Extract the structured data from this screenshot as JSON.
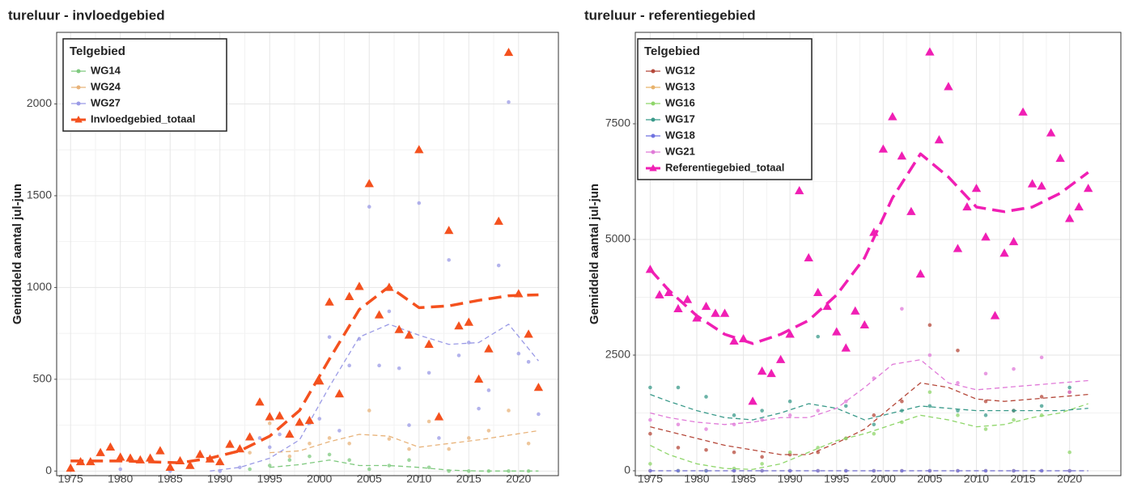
{
  "chart_data": [
    {
      "type": "scatter",
      "title": "tureluur - invloedgebied",
      "y_label": "Gemiddeld aantal jul-jun",
      "legend_title": "Telgebied",
      "legend": "top-left",
      "grid": true,
      "xlim": [
        1973.6,
        2024
      ],
      "ylim": [
        -25,
        2390
      ],
      "xticks": [
        1975,
        1980,
        1985,
        1990,
        1995,
        2000,
        2005,
        2010,
        2015,
        2020
      ],
      "yticks": [
        0,
        500,
        1000,
        1500,
        2000
      ],
      "trend_x": [
        1975,
        1977,
        1980,
        1983,
        1986,
        1989,
        1992,
        1995,
        1998,
        2001,
        2004,
        2007,
        2010,
        2013,
        2016,
        2019,
        2022
      ],
      "series": [
        {
          "name": "WG14",
          "color": "#7fc97f",
          "marker": "circle",
          "x": [
            1993,
            1995,
            1997,
            1999,
            2001,
            2003,
            2005,
            2007,
            2009,
            2011,
            2013,
            2015,
            2017,
            2019,
            2021
          ],
          "values": [
            10,
            30,
            60,
            80,
            90,
            60,
            10,
            30,
            60,
            20,
            0,
            0,
            0,
            0,
            0
          ],
          "trend": [
            null,
            null,
            null,
            null,
            null,
            null,
            null,
            20,
            35,
            60,
            30,
            30,
            20,
            5,
            0,
            0,
            0
          ]
        },
        {
          "name": "WG24",
          "color": "#e8b37a",
          "marker": "circle",
          "x": [
            1993,
            1995,
            1997,
            1999,
            2001,
            2003,
            2005,
            2007,
            2009,
            2011,
            2013,
            2015,
            2017,
            2019,
            2021
          ],
          "values": [
            100,
            260,
            80,
            150,
            180,
            150,
            330,
            175,
            120,
            270,
            120,
            180,
            220,
            330,
            150
          ],
          "trend": [
            null,
            null,
            null,
            null,
            null,
            null,
            null,
            100,
            110,
            160,
            200,
            190,
            130,
            150,
            170,
            195,
            220
          ]
        },
        {
          "name": "WG27",
          "color": "#9a9ae6",
          "marker": "circle",
          "x": [
            1975,
            1980,
            1985,
            1990,
            1992,
            1994,
            1995,
            1996,
            1999,
            2000,
            2001,
            2002,
            2003,
            2004,
            2005,
            2006,
            2007,
            2008,
            2009,
            2010,
            2011,
            2012,
            2013,
            2014,
            2015,
            2016,
            2017,
            2018,
            2019,
            2020,
            2021,
            2022
          ],
          "values": [
            5,
            10,
            0,
            0,
            20,
            180,
            130,
            200,
            260,
            285,
            730,
            220,
            575,
            720,
            1440,
            575,
            870,
            560,
            250,
            1460,
            535,
            180,
            1150,
            630,
            700,
            340,
            440,
            1120,
            2010,
            640,
            595,
            310
          ],
          "trend": [
            null,
            null,
            null,
            null,
            null,
            0,
            20,
            70,
            170,
            460,
            730,
            800,
            740,
            690,
            700,
            800,
            600
          ]
        },
        {
          "name": "Invloedgebied_totaal",
          "color": "#f4511e",
          "marker": "triangle",
          "total": true,
          "x": [
            1975,
            1976,
            1977,
            1978,
            1979,
            1980,
            1981,
            1982,
            1983,
            1984,
            1985,
            1986,
            1987,
            1988,
            1989,
            1990,
            1991,
            1992,
            1993,
            1994,
            1995,
            1996,
            1997,
            1998,
            1999,
            2000,
            2001,
            2002,
            2003,
            2004,
            2005,
            2006,
            2007,
            2008,
            2009,
            2010,
            2011,
            2012,
            2013,
            2014,
            2015,
            2016,
            2017,
            2018,
            2019,
            2020,
            2021,
            2022
          ],
          "values": [
            15,
            50,
            50,
            100,
            130,
            75,
            70,
            60,
            70,
            110,
            20,
            55,
            30,
            90,
            65,
            50,
            145,
            120,
            185,
            375,
            295,
            300,
            200,
            265,
            275,
            490,
            920,
            420,
            950,
            1005,
            1565,
            850,
            1000,
            770,
            740,
            1750,
            690,
            295,
            1310,
            790,
            810,
            500,
            665,
            1360,
            2280,
            965,
            745,
            455
          ],
          "trend": [
            55,
            55,
            55,
            50,
            45,
            70,
            110,
            190,
            330,
            610,
            880,
            1005,
            890,
            900,
            930,
            955,
            960
          ]
        }
      ]
    },
    {
      "type": "scatter",
      "title": "tureluur - referentiegebied",
      "y_label": "Gemiddeld aantal jul-jun",
      "legend_title": "Telgebied",
      "legend": "top-left",
      "grid": true,
      "xlim": [
        1973.4,
        2025.5
      ],
      "ylim": [
        -105,
        9476
      ],
      "xticks": [
        1975,
        1980,
        1985,
        1990,
        1995,
        2000,
        2005,
        2010,
        2015,
        2020
      ],
      "yticks": [
        0,
        2500,
        5000,
        7500
      ],
      "trend_x": [
        1975,
        1977,
        1980,
        1983,
        1986,
        1989,
        1992,
        1995,
        1998,
        2001,
        2004,
        2007,
        2010,
        2013,
        2016,
        2019,
        2022
      ],
      "series": [
        {
          "name": "WG12",
          "color": "#b5483a",
          "marker": "circle",
          "x": [
            1975,
            1978,
            1981,
            1984,
            1987,
            1990,
            1993,
            1996,
            1999,
            2002,
            2005,
            2008,
            2011,
            2014,
            2017,
            2020
          ],
          "values": [
            800,
            500,
            450,
            400,
            300,
            350,
            400,
            700,
            1200,
            1500,
            3150,
            2600,
            1500,
            1300,
            1600,
            1700
          ],
          "trend": [
            950,
            850,
            700,
            550,
            450,
            350,
            350,
            600,
            900,
            1400,
            1900,
            1800,
            1550,
            1500,
            1550,
            1600,
            1650
          ]
        },
        {
          "name": "WG13",
          "color": "#e8b36c",
          "marker": "circle",
          "x": [
            1975,
            1978,
            1981,
            1984,
            1987,
            1990,
            1993,
            1996,
            1999,
            2002,
            2005,
            2008,
            2011,
            2014,
            2017,
            2020
          ],
          "values": [
            0,
            0,
            0,
            0,
            0,
            0,
            0,
            0,
            0,
            0,
            0,
            0,
            0,
            0,
            0,
            0
          ],
          "trend": [
            0,
            0,
            0,
            0,
            0,
            0,
            0,
            0,
            0,
            0,
            0,
            0,
            0,
            0,
            0,
            0,
            0
          ]
        },
        {
          "name": "WG16",
          "color": "#8fd66a",
          "marker": "circle",
          "x": [
            1975,
            1978,
            1981,
            1984,
            1987,
            1990,
            1993,
            1996,
            1999,
            2002,
            2005,
            2008,
            2011,
            2014,
            2017,
            2020
          ],
          "values": [
            150,
            0,
            0,
            50,
            150,
            400,
            500,
            700,
            800,
            1050,
            1700,
            1200,
            900,
            1100,
            1200,
            400
          ],
          "trend": [
            550,
            350,
            150,
            50,
            30,
            150,
            400,
            650,
            800,
            1000,
            1200,
            1100,
            950,
            1000,
            1150,
            1250,
            1450
          ]
        },
        {
          "name": "WG17",
          "color": "#3a9a8a",
          "marker": "circle",
          "x": [
            1975,
            1978,
            1981,
            1984,
            1987,
            1990,
            1993,
            1996,
            1999,
            2002,
            2005,
            2008,
            2011,
            2014,
            2017,
            2020
          ],
          "values": [
            1800,
            1800,
            1600,
            1200,
            1300,
            1500,
            2900,
            1400,
            1000,
            1300,
            1400,
            1300,
            1200,
            1300,
            1400,
            1800
          ],
          "trend": [
            1650,
            1500,
            1300,
            1150,
            1100,
            1250,
            1450,
            1350,
            1100,
            1250,
            1400,
            1350,
            1300,
            1300,
            1300,
            1300,
            1350
          ]
        },
        {
          "name": "WG18",
          "color": "#6f72e0",
          "marker": "circle",
          "x": [
            1975,
            1978,
            1981,
            1984,
            1987,
            1990,
            1993,
            1996,
            1999,
            2002,
            2005,
            2008,
            2011,
            2014,
            2017,
            2020
          ],
          "values": [
            0,
            0,
            0,
            0,
            0,
            0,
            0,
            0,
            0,
            0,
            0,
            0,
            0,
            0,
            0,
            0
          ],
          "trend": [
            0,
            0,
            0,
            0,
            0,
            0,
            0,
            0,
            0,
            0,
            0,
            0,
            0,
            0,
            0,
            0,
            0
          ]
        },
        {
          "name": "WG21",
          "color": "#e07ad8",
          "marker": "circle",
          "x": [
            1975,
            1978,
            1981,
            1984,
            1987,
            1990,
            1993,
            1996,
            1999,
            2002,
            2005,
            2008,
            2011,
            2014,
            2017,
            2020
          ],
          "values": [
            1100,
            1000,
            900,
            1000,
            1100,
            1200,
            1300,
            1500,
            2000,
            3500,
            2500,
            1900,
            2100,
            2200,
            2450,
            1700
          ],
          "trend": [
            1250,
            1150,
            1050,
            1000,
            1050,
            1150,
            1150,
            1350,
            1800,
            2300,
            2400,
            1900,
            1750,
            1800,
            1850,
            1900,
            1950
          ]
        },
        {
          "name": "Referentiegebied_totaal",
          "color": "#f01fb4",
          "marker": "triangle",
          "total": true,
          "x": [
            1975,
            1976,
            1977,
            1978,
            1979,
            1980,
            1981,
            1982,
            1983,
            1984,
            1985,
            1986,
            1987,
            1988,
            1989,
            1990,
            1991,
            1992,
            1993,
            1994,
            1995,
            1996,
            1997,
            1998,
            1999,
            2000,
            2001,
            2002,
            2003,
            2004,
            2005,
            2006,
            2007,
            2008,
            2009,
            2010,
            2011,
            2012,
            2013,
            2014,
            2015,
            2016,
            2017,
            2018,
            2019,
            2020,
            2021,
            2022
          ],
          "values": [
            4350,
            3800,
            3850,
            3500,
            3700,
            3300,
            3550,
            3400,
            3400,
            2800,
            2850,
            1500,
            2150,
            2100,
            2400,
            2950,
            6050,
            4600,
            3850,
            3550,
            3000,
            2650,
            3450,
            3150,
            5150,
            6950,
            7650,
            6800,
            5600,
            4250,
            9050,
            7150,
            8300,
            4800,
            5700,
            6100,
            5050,
            3350,
            4700,
            4950,
            7750,
            6200,
            6150,
            7300,
            6750,
            5450,
            5700,
            6100
          ],
          "trend": [
            4350,
            3900,
            3350,
            2950,
            2750,
            2950,
            3250,
            3800,
            4600,
            5900,
            6850,
            6350,
            5700,
            5600,
            5700,
            6000,
            6450
          ]
        }
      ]
    }
  ]
}
